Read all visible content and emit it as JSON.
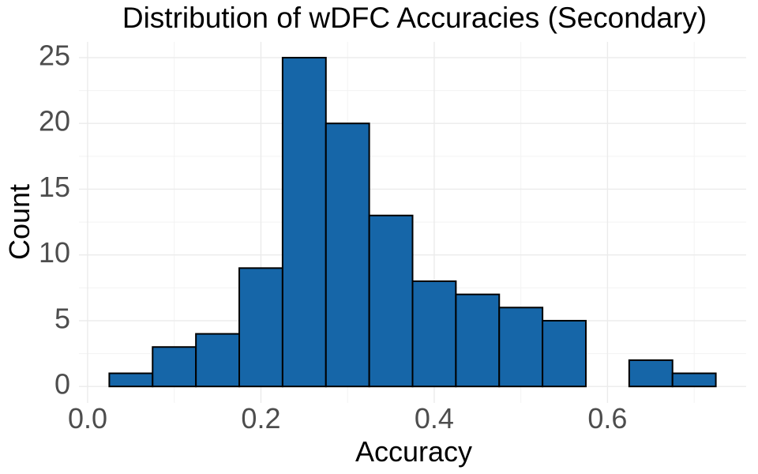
{
  "chart_data": {
    "type": "bar",
    "subtype": "histogram",
    "title": "Distribution of wDFC Accuracies (Secondary)",
    "xlabel": "Accuracy",
    "ylabel": "Count",
    "bin_width": 0.05,
    "bins": [
      {
        "start": 0.025,
        "end": 0.075,
        "count": 1
      },
      {
        "start": 0.075,
        "end": 0.125,
        "count": 3
      },
      {
        "start": 0.125,
        "end": 0.175,
        "count": 4
      },
      {
        "start": 0.175,
        "end": 0.225,
        "count": 9
      },
      {
        "start": 0.225,
        "end": 0.275,
        "count": 25
      },
      {
        "start": 0.275,
        "end": 0.325,
        "count": 20
      },
      {
        "start": 0.325,
        "end": 0.375,
        "count": 13
      },
      {
        "start": 0.375,
        "end": 0.425,
        "count": 8
      },
      {
        "start": 0.425,
        "end": 0.475,
        "count": 7
      },
      {
        "start": 0.475,
        "end": 0.525,
        "count": 6
      },
      {
        "start": 0.525,
        "end": 0.575,
        "count": 5
      },
      {
        "start": 0.575,
        "end": 0.625,
        "count": 0
      },
      {
        "start": 0.625,
        "end": 0.675,
        "count": 2
      },
      {
        "start": 0.675,
        "end": 0.725,
        "count": 1
      }
    ],
    "xlim": [
      -0.01,
      0.76
    ],
    "ylim": [
      -1.25,
      26.2
    ],
    "x_ticks": [
      0.0,
      0.2,
      0.4,
      0.6
    ],
    "x_tick_labels": [
      "0.0",
      "0.2",
      "0.4",
      "0.6"
    ],
    "y_ticks": [
      0,
      5,
      10,
      15,
      20,
      25
    ],
    "y_tick_labels": [
      "0",
      "5",
      "10",
      "15",
      "20",
      "25"
    ],
    "x_minor_ticks": [
      0.1,
      0.3,
      0.5,
      0.7
    ],
    "y_minor_ticks": [
      2.5,
      7.5,
      12.5,
      17.5,
      22.5
    ],
    "grid": true,
    "legend": "none",
    "colors": {
      "bar_fill": "#1666a8",
      "bar_outline": "#000000",
      "grid_major": "#ebebeb",
      "grid_minor": "#f3f3f3",
      "tick_text": "#4d4d4d",
      "title_text": "#000000",
      "background": "#ffffff"
    }
  }
}
